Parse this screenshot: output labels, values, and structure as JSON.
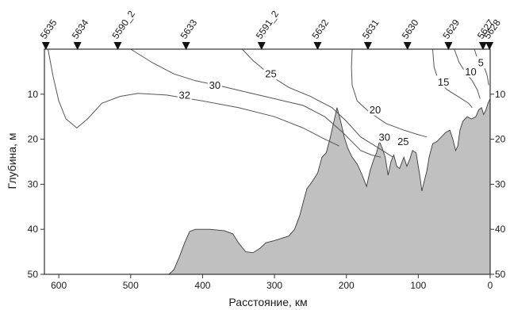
{
  "chart_data": {
    "type": "contour-section",
    "xlabel": "Расстояние, км",
    "ylabel": "Глубина, м",
    "xlim": [
      620,
      0
    ],
    "ylim": [
      50,
      0
    ],
    "x_ticks": [
      "600",
      "500",
      "400",
      "300",
      "200",
      "100",
      "0"
    ],
    "x_tick_values": [
      600,
      500,
      400,
      300,
      200,
      100,
      0
    ],
    "y_ticks": [
      "10",
      "20",
      "30",
      "40",
      "50"
    ],
    "y_tick_values": [
      10,
      20,
      30,
      40,
      50
    ],
    "grid": false,
    "colors": {
      "bottom_fill": "#c0c0c0",
      "line": "#555555",
      "frame": "#333333"
    },
    "stations": [
      {
        "name": "5635",
        "x": 618
      },
      {
        "name": "5634",
        "x": 574
      },
      {
        "name": "5590_2",
        "x": 518
      },
      {
        "name": "5633",
        "x": 423
      },
      {
        "name": "5591_2",
        "x": 318
      },
      {
        "name": "5632",
        "x": 240
      },
      {
        "name": "5631",
        "x": 170
      },
      {
        "name": "5630",
        "x": 115
      },
      {
        "name": "5629",
        "x": 58
      },
      {
        "name": "5627",
        "x": 10
      },
      {
        "name": "5628",
        "x": 1
      }
    ],
    "contours": [
      {
        "level": "32",
        "label_at": [
          425,
          10.2
        ],
        "points": [
          [
            615,
            0
          ],
          [
            608,
            6
          ],
          [
            600,
            11.5
          ],
          [
            590,
            15.5
          ],
          [
            575,
            17.5
          ],
          [
            560,
            15.5
          ],
          [
            540,
            12
          ],
          [
            515,
            10.5
          ],
          [
            490,
            9.8
          ],
          [
            450,
            10.2
          ],
          [
            400,
            11.5
          ],
          [
            350,
            13
          ],
          [
            300,
            15
          ],
          [
            260,
            17.5
          ],
          [
            230,
            20
          ],
          [
            210,
            21.5
          ]
        ]
      },
      {
        "level": "30",
        "label_at": [
          383,
          8
        ],
        "points": [
          [
            500,
            0
          ],
          [
            470,
            3
          ],
          [
            440,
            5.5
          ],
          [
            410,
            7
          ],
          [
            380,
            8
          ],
          [
            340,
            9.5
          ],
          [
            300,
            11
          ],
          [
            260,
            12.5
          ],
          [
            230,
            15
          ],
          [
            205,
            18.5
          ],
          [
            180,
            22.5
          ],
          [
            165,
            23.5
          ],
          [
            152,
            24
          ]
        ]
      },
      {
        "level": "25",
        "label_at": [
          305,
          5.5
        ],
        "points": [
          [
            345,
            0
          ],
          [
            330,
            2.5
          ],
          [
            315,
            4.5
          ],
          [
            300,
            6.5
          ],
          [
            280,
            8.5
          ],
          [
            250,
            10.5
          ],
          [
            220,
            13
          ],
          [
            200,
            16
          ],
          [
            180,
            19.5
          ],
          [
            160,
            21.5
          ],
          [
            145,
            23
          ],
          [
            135,
            24
          ]
        ]
      },
      {
        "level": "20",
        "label_at": [
          160,
          13.5
        ],
        "points": [
          [
            192,
            0
          ],
          [
            193,
            4
          ],
          [
            192,
            8
          ],
          [
            185,
            11.5
          ],
          [
            168,
            14
          ],
          [
            145,
            16.5
          ],
          [
            120,
            18
          ],
          [
            100,
            19
          ],
          [
            88,
            19.5
          ]
        ]
      },
      {
        "level": "15",
        "label_at": [
          65,
          7.3
        ],
        "points": [
          [
            80,
            0
          ],
          [
            78,
            4
          ],
          [
            72,
            7
          ],
          [
            60,
            9
          ],
          [
            45,
            10.5
          ],
          [
            30,
            12
          ],
          [
            25,
            13
          ]
        ]
      },
      {
        "level": "10",
        "label_at": [
          27,
          5
        ],
        "points": [
          [
            50,
            0
          ],
          [
            43,
            3
          ],
          [
            35,
            5
          ],
          [
            25,
            7
          ],
          [
            18,
            9
          ],
          [
            14,
            11
          ]
        ]
      },
      {
        "level": "5",
        "label_at": [
          13,
          3
        ],
        "points": [
          [
            22,
            0
          ],
          [
            18,
            2
          ],
          [
            13,
            3
          ],
          [
            8,
            4
          ],
          [
            4,
            6
          ],
          [
            2,
            8
          ]
        ]
      }
    ],
    "inline_labels": [
      {
        "text": "30",
        "at": [
          147,
          19.5
        ]
      },
      {
        "text": "25",
        "at": [
          121,
          20.5
        ]
      }
    ],
    "bottom_profile": [
      [
        447,
        50
      ],
      [
        440,
        49
      ],
      [
        432,
        46
      ],
      [
        425,
        43
      ],
      [
        418,
        40.5
      ],
      [
        410,
        40
      ],
      [
        390,
        40
      ],
      [
        370,
        40.3
      ],
      [
        358,
        41
      ],
      [
        350,
        43
      ],
      [
        340,
        45
      ],
      [
        330,
        45.2
      ],
      [
        320,
        44.2
      ],
      [
        312,
        43
      ],
      [
        300,
        42.5
      ],
      [
        290,
        42
      ],
      [
        280,
        41.5
      ],
      [
        272,
        40
      ],
      [
        265,
        37
      ],
      [
        260,
        34
      ],
      [
        255,
        31
      ],
      [
        248,
        29.5
      ],
      [
        240,
        27.5
      ],
      [
        234,
        24
      ],
      [
        228,
        23
      ],
      [
        223,
        20
      ],
      [
        218,
        16.5
      ],
      [
        213,
        13
      ],
      [
        208,
        16
      ],
      [
        203,
        19.5
      ],
      [
        198,
        22
      ],
      [
        192,
        24
      ],
      [
        185,
        25.5
      ],
      [
        178,
        28
      ],
      [
        172,
        30.5
      ],
      [
        167,
        27
      ],
      [
        162,
        24.5
      ],
      [
        158,
        23
      ],
      [
        154,
        20.5
      ],
      [
        150,
        22
      ],
      [
        146,
        24
      ],
      [
        142,
        28
      ],
      [
        138,
        25
      ],
      [
        134,
        23.5
      ],
      [
        130,
        26
      ],
      [
        126,
        26.5
      ],
      [
        120,
        24
      ],
      [
        116,
        26
      ],
      [
        112,
        24.5
      ],
      [
        108,
        22.5
      ],
      [
        103,
        23
      ],
      [
        98,
        28
      ],
      [
        95,
        31.5
      ],
      [
        92,
        29.5
      ],
      [
        88,
        27
      ],
      [
        85,
        24
      ],
      [
        80,
        21
      ],
      [
        74,
        20.5
      ],
      [
        68,
        19.5
      ],
      [
        62,
        18.5
      ],
      [
        56,
        18
      ],
      [
        52,
        20
      ],
      [
        48,
        22.5
      ],
      [
        45,
        21.5
      ],
      [
        42,
        18
      ],
      [
        38,
        16
      ],
      [
        32,
        15
      ],
      [
        26,
        15.5
      ],
      [
        20,
        15
      ],
      [
        16,
        13.5
      ],
      [
        12,
        13
      ],
      [
        9,
        14.5
      ],
      [
        6,
        13.5
      ],
      [
        3,
        12
      ],
      [
        0,
        11
      ],
      [
        0,
        50
      ]
    ]
  }
}
